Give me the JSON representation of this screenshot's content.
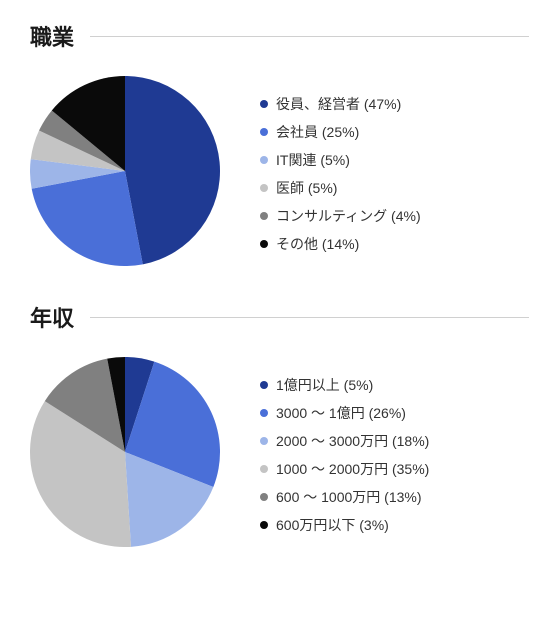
{
  "charts": [
    {
      "title": "職業",
      "type": "pie",
      "radius": 95,
      "start_angle": -90,
      "slices": [
        {
          "label": "役員、経営者 (47%)",
          "value": 47,
          "color": "#1f3a93"
        },
        {
          "label": "会社員 (25%)",
          "value": 25,
          "color": "#4a6fd8"
        },
        {
          "label": "IT関連 (5%)",
          "value": 5,
          "color": "#9db5e8"
        },
        {
          "label": "医師 (5%)",
          "value": 5,
          "color": "#c4c4c4"
        },
        {
          "label": "コンサルティング (4%)",
          "value": 4,
          "color": "#808080"
        },
        {
          "label": "その他 (14%)",
          "value": 14,
          "color": "#0a0a0a"
        }
      ]
    },
    {
      "title": "年収",
      "type": "pie",
      "radius": 95,
      "start_angle": -90,
      "slices": [
        {
          "label": "1億円以上 (5%)",
          "value": 5,
          "color": "#1f3a93"
        },
        {
          "label": "3000 〜 1億円 (26%)",
          "value": 26,
          "color": "#4a6fd8"
        },
        {
          "label": "2000 〜 3000万円 (18%)",
          "value": 18,
          "color": "#9db5e8"
        },
        {
          "label": "1000 〜 2000万円 (35%)",
          "value": 35,
          "color": "#c4c4c4"
        },
        {
          "label": "600 〜 1000万円 (13%)",
          "value": 13,
          "color": "#808080"
        },
        {
          "label": "600万円以下 (3%)",
          "value": 3,
          "color": "#0a0a0a"
        }
      ]
    }
  ]
}
